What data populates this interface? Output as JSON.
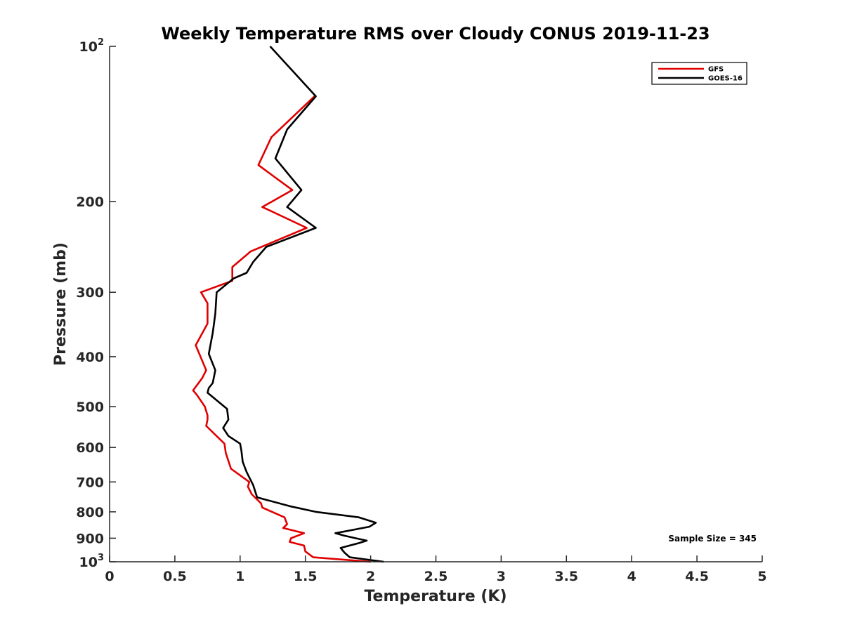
{
  "chart_data": {
    "type": "line",
    "title": "Weekly Temperature RMS over Cloudy CONUS 2019-11-23",
    "xlabel": "Temperature (K)",
    "ylabel": "Pressure (mb)",
    "xlim": [
      0,
      5
    ],
    "ylim": [
      100,
      1000
    ],
    "y_scale": "log",
    "y_reversed": true,
    "x_ticks": [
      "0",
      "0.5",
      "1",
      "1.5",
      "2",
      "2.5",
      "3",
      "3.5",
      "4",
      "4.5",
      "5"
    ],
    "x_tick_values": [
      0,
      0.5,
      1,
      1.5,
      2,
      2.5,
      3,
      3.5,
      4,
      4.5,
      5
    ],
    "y_ticks": [
      {
        "value": 100,
        "label": "10",
        "sup": "2"
      },
      {
        "value": 200,
        "label": "200"
      },
      {
        "value": 300,
        "label": "300"
      },
      {
        "value": 400,
        "label": "400"
      },
      {
        "value": 500,
        "label": "500"
      },
      {
        "value": 600,
        "label": "600"
      },
      {
        "value": 700,
        "label": "700"
      },
      {
        "value": 800,
        "label": "800"
      },
      {
        "value": 900,
        "label": "900"
      },
      {
        "value": 1000,
        "label": "10",
        "sup": "3"
      }
    ],
    "legend_position": "top-right",
    "grid": false,
    "annotation": "Sample Size = 345",
    "series": [
      {
        "name": "GFS",
        "color": "#e00000",
        "points": [
          [
            1.57,
            125
          ],
          [
            1.24,
            150
          ],
          [
            1.14,
            170
          ],
          [
            1.4,
            190
          ],
          [
            1.17,
            205
          ],
          [
            1.51,
            225
          ],
          [
            1.08,
            250
          ],
          [
            0.94,
            268
          ],
          [
            0.94,
            285
          ],
          [
            0.7,
            300
          ],
          [
            0.75,
            315
          ],
          [
            0.75,
            345
          ],
          [
            0.66,
            380
          ],
          [
            0.74,
            425
          ],
          [
            0.71,
            440
          ],
          [
            0.64,
            465
          ],
          [
            0.67,
            475
          ],
          [
            0.73,
            500
          ],
          [
            0.75,
            520
          ],
          [
            0.75,
            530
          ],
          [
            0.74,
            545
          ],
          [
            0.88,
            590
          ],
          [
            0.89,
            615
          ],
          [
            0.93,
            660
          ],
          [
            1.07,
            700
          ],
          [
            1.06,
            715
          ],
          [
            1.09,
            740
          ],
          [
            1.16,
            770
          ],
          [
            1.17,
            785
          ],
          [
            1.34,
            820
          ],
          [
            1.36,
            845
          ],
          [
            1.33,
            860
          ],
          [
            1.49,
            880
          ],
          [
            1.39,
            900
          ],
          [
            1.38,
            915
          ],
          [
            1.49,
            930
          ],
          [
            1.5,
            955
          ],
          [
            1.56,
            980
          ],
          [
            2.0,
            1000
          ]
        ]
      },
      {
        "name": "GOES-16",
        "color": "#000000",
        "points": [
          [
            1.23,
            100
          ],
          [
            1.58,
            125
          ],
          [
            1.36,
            145
          ],
          [
            1.27,
            165
          ],
          [
            1.47,
            190
          ],
          [
            1.36,
            205
          ],
          [
            1.58,
            225
          ],
          [
            1.2,
            245
          ],
          [
            1.1,
            262
          ],
          [
            1.05,
            275
          ],
          [
            0.95,
            282
          ],
          [
            0.82,
            300
          ],
          [
            0.81,
            330
          ],
          [
            0.79,
            360
          ],
          [
            0.76,
            395
          ],
          [
            0.81,
            425
          ],
          [
            0.79,
            450
          ],
          [
            0.76,
            460
          ],
          [
            0.75,
            470
          ],
          [
            0.9,
            505
          ],
          [
            0.91,
            530
          ],
          [
            0.87,
            550
          ],
          [
            0.91,
            570
          ],
          [
            1.0,
            590
          ],
          [
            1.01,
            610
          ],
          [
            1.02,
            640
          ],
          [
            1.05,
            670
          ],
          [
            1.1,
            710
          ],
          [
            1.13,
            750
          ],
          [
            1.38,
            780
          ],
          [
            1.58,
            800
          ],
          [
            1.91,
            820
          ],
          [
            2.04,
            840
          ],
          [
            1.99,
            855
          ],
          [
            1.73,
            880
          ],
          [
            1.8,
            890
          ],
          [
            1.97,
            910
          ],
          [
            1.91,
            920
          ],
          [
            1.77,
            940
          ],
          [
            1.8,
            960
          ],
          [
            1.84,
            980
          ],
          [
            2.1,
            1000
          ]
        ]
      }
    ]
  }
}
